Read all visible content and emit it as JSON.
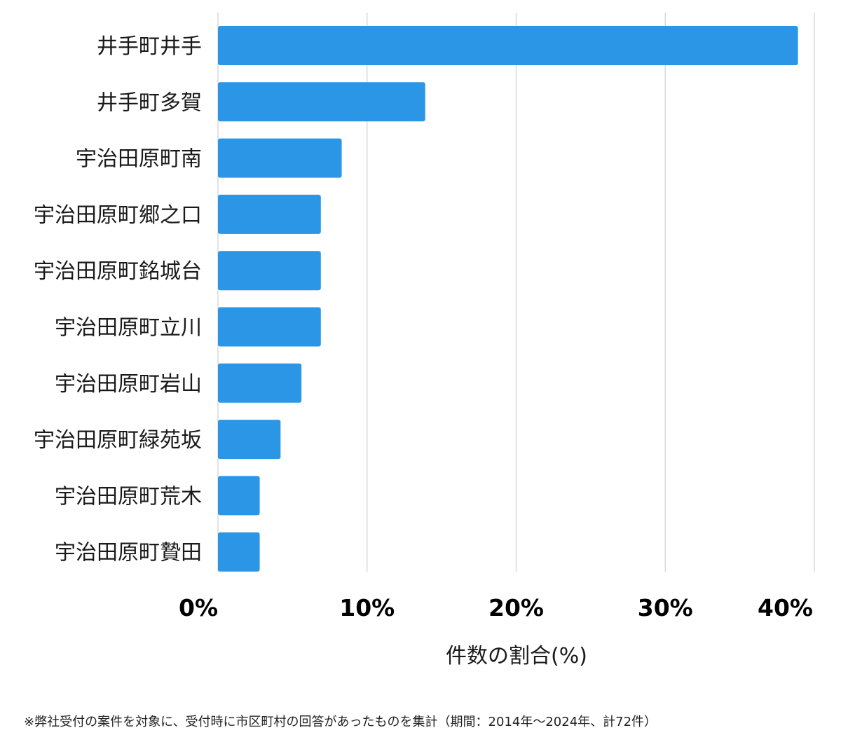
{
  "chart_data": {
    "type": "bar",
    "orientation": "horizontal",
    "categories": [
      "井手町井手",
      "井手町多賀",
      "宇治田原町南",
      "宇治田原町郷之口",
      "宇治田原町銘城台",
      "宇治田原町立川",
      "宇治田原町岩山",
      "宇治田原町緑苑坂",
      "宇治田原町荒木",
      "宇治田原町贄田"
    ],
    "values": [
      38.9,
      13.9,
      8.3,
      6.9,
      6.9,
      6.9,
      5.6,
      4.2,
      2.8,
      2.8
    ],
    "xlim": [
      0,
      40
    ],
    "xticks": [
      0,
      10,
      20,
      30,
      40
    ],
    "xtick_labels": [
      "0%",
      "10%",
      "20%",
      "30%",
      "40%"
    ],
    "xlabel": "件数の割合(%)",
    "grid": true,
    "bar_color": "#2b95e6",
    "grid_color": "#d9d9d9"
  },
  "footnote": "※弊社受付の案件を対象に、受付時に市区町村の回答があったものを集計（期間：2014年～2024年、計72件）"
}
